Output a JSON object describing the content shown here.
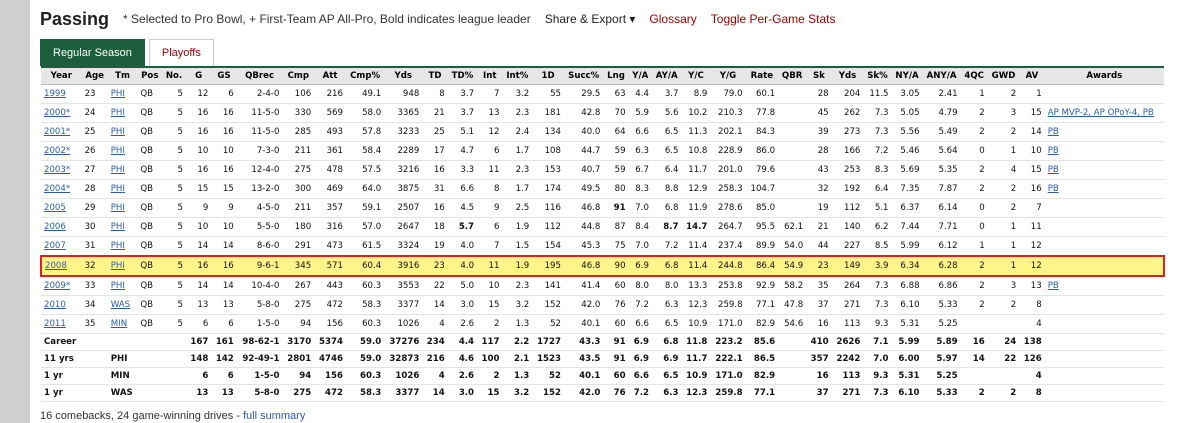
{
  "header": {
    "title": "Passing",
    "note": "* Selected to Pro Bowl, + First-Team AP All-Pro, Bold indicates league leader",
    "links": [
      "Share & Export ▾",
      "Glossary",
      "Toggle Per-Game Stats"
    ]
  },
  "tabs": [
    {
      "label": "Regular Season",
      "active": true
    },
    {
      "label": "Playoffs",
      "active": false
    }
  ],
  "table": {
    "columns": [
      "Year",
      "Age",
      "Tm",
      "Pos",
      "No.",
      "G",
      "GS",
      "QBrec",
      "Cmp",
      "Att",
      "Cmp%",
      "Yds",
      "TD",
      "TD%",
      "Int",
      "Int%",
      "1D",
      "Succ%",
      "Lng",
      "Y/A",
      "AY/A",
      "Y/C",
      "Y/G",
      "Rate",
      "QBR",
      "Sk",
      "Yds",
      "Sk%",
      "NY/A",
      "ANY/A",
      "4QC",
      "GWD",
      "AV",
      "Awards"
    ],
    "rows": [
      {
        "cells": [
          "1999",
          "23",
          "PHI",
          "QB",
          "5",
          "12",
          "6",
          "2-4-0",
          "106",
          "216",
          "49.1",
          "948",
          "8",
          "3.7",
          "7",
          "3.2",
          "55",
          "29.5",
          "63",
          "4.4",
          "3.7",
          "8.9",
          "79.0",
          "60.1",
          "",
          "28",
          "204",
          "11.5",
          "3.05",
          "2.41",
          "1",
          "2",
          "1",
          ""
        ]
      },
      {
        "cells": [
          "2000*",
          "24",
          "PHI",
          "QB",
          "5",
          "16",
          "16",
          "11-5-0",
          "330",
          "569",
          "58.0",
          "3365",
          "21",
          "3.7",
          "13",
          "2.3",
          "181",
          "42.8",
          "70",
          "5.9",
          "5.6",
          "10.2",
          "210.3",
          "77.8",
          "",
          "45",
          "262",
          "7.3",
          "5.05",
          "4.79",
          "2",
          "3",
          "15",
          "AP MVP-2, AP OPoY-4, PB"
        ]
      },
      {
        "cells": [
          "2001*",
          "25",
          "PHI",
          "QB",
          "5",
          "16",
          "16",
          "11-5-0",
          "285",
          "493",
          "57.8",
          "3233",
          "25",
          "5.1",
          "12",
          "2.4",
          "134",
          "40.0",
          "64",
          "6.6",
          "6.5",
          "11.3",
          "202.1",
          "84.3",
          "",
          "39",
          "273",
          "7.3",
          "5.56",
          "5.49",
          "2",
          "2",
          "14",
          "PB"
        ]
      },
      {
        "cells": [
          "2002*",
          "26",
          "PHI",
          "QB",
          "5",
          "10",
          "10",
          "7-3-0",
          "211",
          "361",
          "58.4",
          "2289",
          "17",
          "4.7",
          "6",
          "1.7",
          "108",
          "44.7",
          "59",
          "6.3",
          "6.5",
          "10.8",
          "228.9",
          "86.0",
          "",
          "28",
          "166",
          "7.2",
          "5.46",
          "5.64",
          "0",
          "1",
          "10",
          "PB"
        ]
      },
      {
        "cells": [
          "2003*",
          "27",
          "PHI",
          "QB",
          "5",
          "16",
          "16",
          "12-4-0",
          "275",
          "478",
          "57.5",
          "3216",
          "16",
          "3.3",
          "11",
          "2.3",
          "153",
          "40.7",
          "59",
          "6.7",
          "6.4",
          "11.7",
          "201.0",
          "79.6",
          "",
          "43",
          "253",
          "8.3",
          "5.69",
          "5.35",
          "2",
          "4",
          "15",
          "PB"
        ]
      },
      {
        "cells": [
          "2004*",
          "28",
          "PHI",
          "QB",
          "5",
          "15",
          "15",
          "13-2-0",
          "300",
          "469",
          "64.0",
          "3875",
          "31",
          "6.6",
          "8",
          "1.7",
          "174",
          "49.5",
          "80",
          "8.3",
          "8.8",
          "12.9",
          "258.3",
          "104.7",
          "",
          "32",
          "192",
          "6.4",
          "7.35",
          "7.87",
          "2",
          "2",
          "16",
          "PB"
        ]
      },
      {
        "cells": [
          "2005",
          "29",
          "PHI",
          "QB",
          "5",
          "9",
          "9",
          "4-5-0",
          "211",
          "357",
          "59.1",
          "2507",
          "16",
          "4.5",
          "9",
          "2.5",
          "116",
          "46.8",
          "91",
          "7.0",
          "6.8",
          "11.9",
          "278.6",
          "85.0",
          "",
          "19",
          "112",
          "5.1",
          "6.37",
          "6.14",
          "0",
          "2",
          "7",
          ""
        ],
        "bold": [
          18
        ]
      },
      {
        "cells": [
          "2006",
          "30",
          "PHI",
          "QB",
          "5",
          "10",
          "10",
          "5-5-0",
          "180",
          "316",
          "57.0",
          "2647",
          "18",
          "5.7",
          "6",
          "1.9",
          "112",
          "44.8",
          "87",
          "8.4",
          "8.7",
          "14.7",
          "264.7",
          "95.5",
          "62.1",
          "21",
          "140",
          "6.2",
          "7.44",
          "7.71",
          "0",
          "1",
          "11",
          ""
        ],
        "bold": [
          13,
          20,
          21
        ]
      },
      {
        "cells": [
          "2007",
          "31",
          "PHI",
          "QB",
          "5",
          "14",
          "14",
          "8-6-0",
          "291",
          "473",
          "61.5",
          "3324",
          "19",
          "4.0",
          "7",
          "1.5",
          "154",
          "45.3",
          "75",
          "7.0",
          "7.2",
          "11.4",
          "237.4",
          "89.9",
          "54.0",
          "44",
          "227",
          "8.5",
          "5.99",
          "6.12",
          "1",
          "1",
          "12",
          ""
        ]
      },
      {
        "cells": [
          "2008",
          "32",
          "PHI",
          "QB",
          "5",
          "16",
          "16",
          "9-6-1",
          "345",
          "571",
          "60.4",
          "3916",
          "23",
          "4.0",
          "11",
          "1.9",
          "195",
          "46.8",
          "90",
          "6.9",
          "6.8",
          "11.4",
          "244.8",
          "86.4",
          "54.9",
          "23",
          "149",
          "3.9",
          "6.34",
          "6.28",
          "2",
          "1",
          "12",
          ""
        ],
        "highlight": true
      },
      {
        "cells": [
          "2009*",
          "33",
          "PHI",
          "QB",
          "5",
          "14",
          "14",
          "10-4-0",
          "267",
          "443",
          "60.3",
          "3553",
          "22",
          "5.0",
          "10",
          "2.3",
          "141",
          "41.4",
          "60",
          "8.0",
          "8.0",
          "13.3",
          "253.8",
          "92.9",
          "58.2",
          "35",
          "264",
          "7.3",
          "6.88",
          "6.86",
          "2",
          "3",
          "13",
          "PB"
        ]
      },
      {
        "cells": [
          "2010",
          "34",
          "WAS",
          "QB",
          "5",
          "13",
          "13",
          "5-8-0",
          "275",
          "472",
          "58.3",
          "3377",
          "14",
          "3.0",
          "15",
          "3.2",
          "152",
          "42.0",
          "76",
          "7.2",
          "6.3",
          "12.3",
          "259.8",
          "77.1",
          "47.8",
          "37",
          "271",
          "7.3",
          "6.10",
          "5.33",
          "2",
          "2",
          "8",
          ""
        ]
      },
      {
        "cells": [
          "2011",
          "35",
          "MIN",
          "QB",
          "5",
          "6",
          "6",
          "1-5-0",
          "94",
          "156",
          "60.3",
          "1026",
          "4",
          "2.6",
          "2",
          "1.3",
          "52",
          "40.1",
          "60",
          "6.6",
          "6.5",
          "10.9",
          "171.0",
          "82.9",
          "54.6",
          "16",
          "113",
          "9.3",
          "5.31",
          "5.25",
          "",
          "",
          "4",
          ""
        ]
      },
      {
        "cells": [
          "Career",
          "",
          "",
          "",
          "",
          "167",
          "161",
          "98-62-1",
          "3170",
          "5374",
          "59.0",
          "37276",
          "234",
          "4.4",
          "117",
          "2.2",
          "1727",
          "43.3",
          "91",
          "6.9",
          "6.8",
          "11.8",
          "223.2",
          "85.6",
          "",
          "410",
          "2626",
          "7.1",
          "5.99",
          "5.89",
          "16",
          "24",
          "138",
          ""
        ],
        "summary": true
      },
      {
        "cells": [
          "11 yrs",
          "",
          "PHI",
          "",
          "",
          "148",
          "142",
          "92-49-1",
          "2801",
          "4746",
          "59.0",
          "32873",
          "216",
          "4.6",
          "100",
          "2.1",
          "1523",
          "43.5",
          "91",
          "6.9",
          "6.9",
          "11.7",
          "222.1",
          "86.5",
          "",
          "357",
          "2242",
          "7.0",
          "6.00",
          "5.97",
          "14",
          "22",
          "126",
          ""
        ],
        "summary": true
      },
      {
        "cells": [
          "1 yr",
          "",
          "MIN",
          "",
          "",
          "6",
          "6",
          "1-5-0",
          "94",
          "156",
          "60.3",
          "1026",
          "4",
          "2.6",
          "2",
          "1.3",
          "52",
          "40.1",
          "60",
          "6.6",
          "6.5",
          "10.9",
          "171.0",
          "82.9",
          "",
          "16",
          "113",
          "9.3",
          "5.31",
          "5.25",
          "",
          "",
          "4",
          ""
        ],
        "summary": true
      },
      {
        "cells": [
          "1 yr",
          "",
          "WAS",
          "",
          "",
          "13",
          "13",
          "5-8-0",
          "275",
          "472",
          "58.3",
          "3377",
          "14",
          "3.0",
          "15",
          "3.2",
          "152",
          "42.0",
          "76",
          "7.2",
          "6.3",
          "12.3",
          "259.8",
          "77.1",
          "",
          "37",
          "271",
          "7.3",
          "6.10",
          "5.33",
          "2",
          "2",
          "8",
          ""
        ],
        "summary": true
      }
    ]
  },
  "footer": {
    "text": "16 comebacks, 24 game-winning drives - ",
    "link": "full summary"
  }
}
